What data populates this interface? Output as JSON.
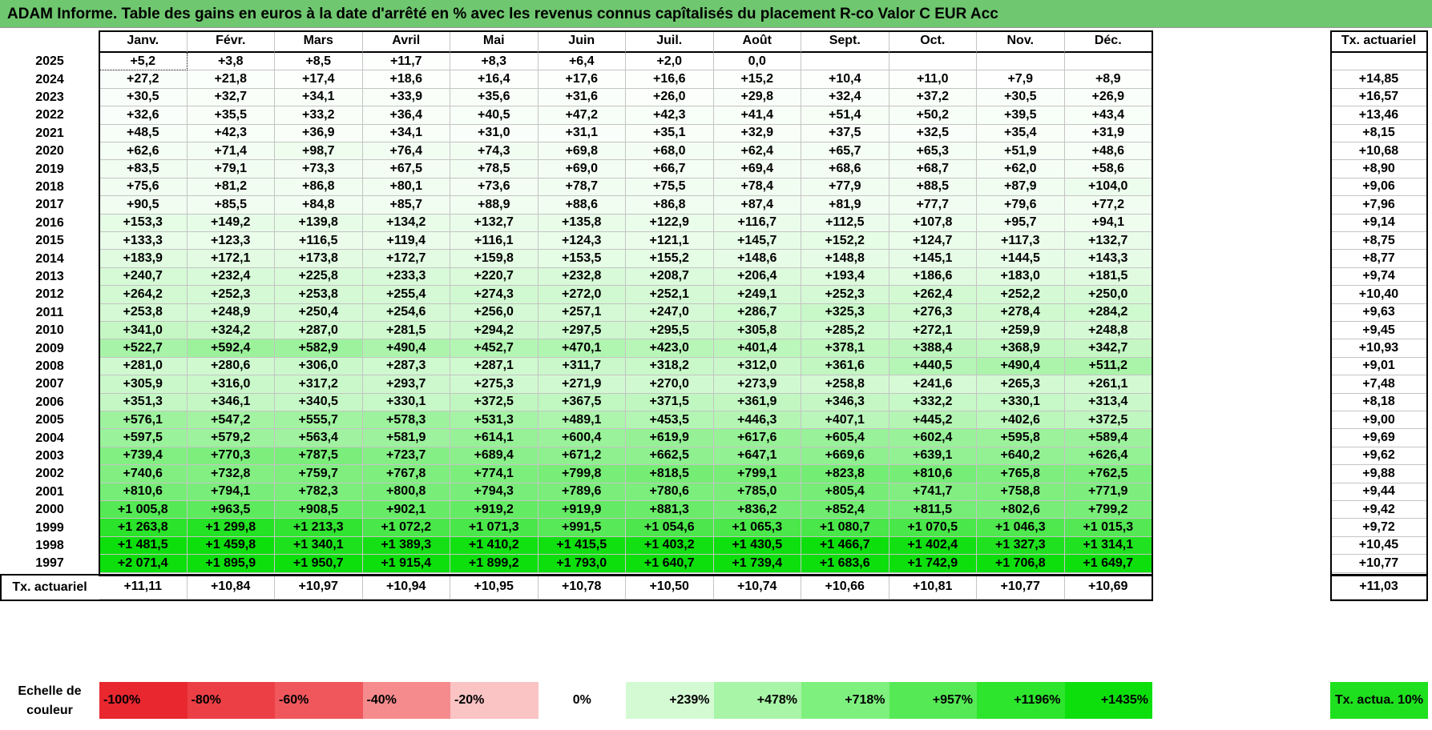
{
  "title": "ADAM Informe. Table des gains en euros à la date d'arrêté en % avec les revenus connus capîtalisés du placement R-co Valor C EUR Acc",
  "months": [
    "Janv.",
    "Févr.",
    "Mars",
    "Avril",
    "Mai",
    "Juin",
    "Juil.",
    "Août",
    "Sept.",
    "Oct.",
    "Nov.",
    "Déc."
  ],
  "rate_header": "Tx. actuariel",
  "rows": [
    {
      "year": "2025",
      "values": [
        "+5,2",
        "+3,8",
        "+8,5",
        "+11,7",
        "+8,3",
        "+6,4",
        "+2,0",
        "0,0",
        "",
        "",
        "",
        ""
      ],
      "rate": ""
    },
    {
      "year": "2024",
      "values": [
        "+27,2",
        "+21,8",
        "+17,4",
        "+18,6",
        "+16,4",
        "+17,6",
        "+16,6",
        "+15,2",
        "+10,4",
        "+11,0",
        "+7,9",
        "+8,9"
      ],
      "rate": "+14,85"
    },
    {
      "year": "2023",
      "values": [
        "+30,5",
        "+32,7",
        "+34,1",
        "+33,9",
        "+35,6",
        "+31,6",
        "+26,0",
        "+29,8",
        "+32,4",
        "+37,2",
        "+30,5",
        "+26,9"
      ],
      "rate": "+16,57"
    },
    {
      "year": "2022",
      "values": [
        "+32,6",
        "+35,5",
        "+33,2",
        "+36,4",
        "+40,5",
        "+47,2",
        "+42,3",
        "+41,4",
        "+51,4",
        "+50,2",
        "+39,5",
        "+43,4"
      ],
      "rate": "+13,46"
    },
    {
      "year": "2021",
      "values": [
        "+48,5",
        "+42,3",
        "+36,9",
        "+34,1",
        "+31,0",
        "+31,1",
        "+35,1",
        "+32,9",
        "+37,5",
        "+32,5",
        "+35,4",
        "+31,9"
      ],
      "rate": "+8,15"
    },
    {
      "year": "2020",
      "values": [
        "+62,6",
        "+71,4",
        "+98,7",
        "+76,4",
        "+74,3",
        "+69,8",
        "+68,0",
        "+62,4",
        "+65,7",
        "+65,3",
        "+51,9",
        "+48,6"
      ],
      "rate": "+10,68"
    },
    {
      "year": "2019",
      "values": [
        "+83,5",
        "+79,1",
        "+73,3",
        "+67,5",
        "+78,5",
        "+69,0",
        "+66,7",
        "+69,4",
        "+68,6",
        "+68,7",
        "+62,0",
        "+58,6"
      ],
      "rate": "+8,90"
    },
    {
      "year": "2018",
      "values": [
        "+75,6",
        "+81,2",
        "+86,8",
        "+80,1",
        "+73,6",
        "+78,7",
        "+75,5",
        "+78,4",
        "+77,9",
        "+88,5",
        "+87,9",
        "+104,0"
      ],
      "rate": "+9,06"
    },
    {
      "year": "2017",
      "values": [
        "+90,5",
        "+85,5",
        "+84,8",
        "+85,7",
        "+88,9",
        "+88,6",
        "+86,8",
        "+87,4",
        "+81,9",
        "+77,7",
        "+79,6",
        "+77,2"
      ],
      "rate": "+7,96"
    },
    {
      "year": "2016",
      "values": [
        "+153,3",
        "+149,2",
        "+139,8",
        "+134,2",
        "+132,7",
        "+135,8",
        "+122,9",
        "+116,7",
        "+112,5",
        "+107,8",
        "+95,7",
        "+94,1"
      ],
      "rate": "+9,14"
    },
    {
      "year": "2015",
      "values": [
        "+133,3",
        "+123,3",
        "+116,5",
        "+119,4",
        "+116,1",
        "+124,3",
        "+121,1",
        "+145,7",
        "+152,2",
        "+124,7",
        "+117,3",
        "+132,7"
      ],
      "rate": "+8,75"
    },
    {
      "year": "2014",
      "values": [
        "+183,9",
        "+172,1",
        "+173,8",
        "+172,7",
        "+159,8",
        "+153,5",
        "+155,2",
        "+148,6",
        "+148,8",
        "+145,1",
        "+144,5",
        "+143,3"
      ],
      "rate": "+8,77"
    },
    {
      "year": "2013",
      "values": [
        "+240,7",
        "+232,4",
        "+225,8",
        "+233,3",
        "+220,7",
        "+232,8",
        "+208,7",
        "+206,4",
        "+193,4",
        "+186,6",
        "+183,0",
        "+181,5"
      ],
      "rate": "+9,74"
    },
    {
      "year": "2012",
      "values": [
        "+264,2",
        "+252,3",
        "+253,8",
        "+255,4",
        "+274,3",
        "+272,0",
        "+252,1",
        "+249,1",
        "+252,3",
        "+262,4",
        "+252,2",
        "+250,0"
      ],
      "rate": "+10,40"
    },
    {
      "year": "2011",
      "values": [
        "+253,8",
        "+248,9",
        "+250,4",
        "+254,6",
        "+256,0",
        "+257,1",
        "+247,0",
        "+286,7",
        "+325,3",
        "+276,3",
        "+278,4",
        "+284,2"
      ],
      "rate": "+9,63"
    },
    {
      "year": "2010",
      "values": [
        "+341,0",
        "+324,2",
        "+287,0",
        "+281,5",
        "+294,2",
        "+297,5",
        "+295,5",
        "+305,8",
        "+285,2",
        "+272,1",
        "+259,9",
        "+248,8"
      ],
      "rate": "+9,45"
    },
    {
      "year": "2009",
      "values": [
        "+522,7",
        "+592,4",
        "+582,9",
        "+490,4",
        "+452,7",
        "+470,1",
        "+423,0",
        "+401,4",
        "+378,1",
        "+388,4",
        "+368,9",
        "+342,7"
      ],
      "rate": "+10,93"
    },
    {
      "year": "2008",
      "values": [
        "+281,0",
        "+280,6",
        "+306,0",
        "+287,3",
        "+287,1",
        "+311,7",
        "+318,2",
        "+312,0",
        "+361,6",
        "+440,5",
        "+490,4",
        "+511,2"
      ],
      "rate": "+9,01"
    },
    {
      "year": "2007",
      "values": [
        "+305,9",
        "+316,0",
        "+317,2",
        "+293,7",
        "+275,3",
        "+271,9",
        "+270,0",
        "+273,9",
        "+258,8",
        "+241,6",
        "+265,3",
        "+261,1"
      ],
      "rate": "+7,48"
    },
    {
      "year": "2006",
      "values": [
        "+351,3",
        "+346,1",
        "+340,5",
        "+330,1",
        "+372,5",
        "+367,5",
        "+371,5",
        "+361,9",
        "+346,3",
        "+332,2",
        "+330,1",
        "+313,4"
      ],
      "rate": "+8,18"
    },
    {
      "year": "2005",
      "values": [
        "+576,1",
        "+547,2",
        "+555,7",
        "+578,3",
        "+531,3",
        "+489,1",
        "+453,5",
        "+446,3",
        "+407,1",
        "+445,2",
        "+402,6",
        "+372,5"
      ],
      "rate": "+9,00"
    },
    {
      "year": "2004",
      "values": [
        "+597,5",
        "+579,2",
        "+563,4",
        "+581,9",
        "+614,1",
        "+600,4",
        "+619,9",
        "+617,6",
        "+605,4",
        "+602,4",
        "+595,8",
        "+589,4"
      ],
      "rate": "+9,69"
    },
    {
      "year": "2003",
      "values": [
        "+739,4",
        "+770,3",
        "+787,5",
        "+723,7",
        "+689,4",
        "+671,2",
        "+662,5",
        "+647,1",
        "+669,6",
        "+639,1",
        "+640,2",
        "+626,4"
      ],
      "rate": "+9,62"
    },
    {
      "year": "2002",
      "values": [
        "+740,6",
        "+732,8",
        "+759,7",
        "+767,8",
        "+774,1",
        "+799,8",
        "+818,5",
        "+799,1",
        "+823,8",
        "+810,6",
        "+765,8",
        "+762,5"
      ],
      "rate": "+9,88"
    },
    {
      "year": "2001",
      "values": [
        "+810,6",
        "+794,1",
        "+782,3",
        "+800,8",
        "+794,3",
        "+789,6",
        "+780,6",
        "+785,0",
        "+805,4",
        "+741,7",
        "+758,8",
        "+771,9"
      ],
      "rate": "+9,44"
    },
    {
      "year": "2000",
      "values": [
        "+1 005,8",
        "+963,5",
        "+908,5",
        "+902,1",
        "+919,2",
        "+919,9",
        "+881,3",
        "+836,2",
        "+852,4",
        "+811,5",
        "+802,6",
        "+799,2"
      ],
      "rate": "+9,42"
    },
    {
      "year": "1999",
      "values": [
        "+1 263,8",
        "+1 299,8",
        "+1 213,3",
        "+1 072,2",
        "+1 071,3",
        "+991,5",
        "+1 054,6",
        "+1 065,3",
        "+1 080,7",
        "+1 070,5",
        "+1 046,3",
        "+1 015,3"
      ],
      "rate": "+9,72"
    },
    {
      "year": "1998",
      "values": [
        "+1 481,5",
        "+1 459,8",
        "+1 340,1",
        "+1 389,3",
        "+1 410,2",
        "+1 415,5",
        "+1 403,2",
        "+1 430,5",
        "+1 466,7",
        "+1 402,4",
        "+1 327,3",
        "+1 314,1"
      ],
      "rate": "+10,45"
    },
    {
      "year": "1997",
      "values": [
        "+2 071,4",
        "+1 895,9",
        "+1 950,7",
        "+1 915,4",
        "+1 899,2",
        "+1 793,0",
        "+1 640,7",
        "+1 739,4",
        "+1 683,6",
        "+1 742,9",
        "+1 706,8",
        "+1 649,7"
      ],
      "rate": "+10,77"
    }
  ],
  "total_row": {
    "label": "Tx. actuariel",
    "values": [
      "+11,11",
      "+10,84",
      "+10,97",
      "+10,94",
      "+10,95",
      "+10,78",
      "+10,50",
      "+10,74",
      "+10,66",
      "+10,81",
      "+10,77",
      "+10,69"
    ],
    "rate": "+11,03"
  },
  "legend": {
    "label": "Echelle de couleur",
    "scale": [
      {
        "text": "-100%",
        "color": "#e8272f"
      },
      {
        "text": "-80%",
        "color": "#ec3f45"
      },
      {
        "text": "-60%",
        "color": "#f0575c"
      },
      {
        "text": "-40%",
        "color": "#f58b8d"
      },
      {
        "text": "-20%",
        "color": "#fac3c4"
      },
      {
        "text": "0%",
        "color": "#ffffff"
      },
      {
        "text": "+239%",
        "color": "#d4fad4"
      },
      {
        "text": "+478%",
        "color": "#a8f5a8"
      },
      {
        "text": "+718%",
        "color": "#7ef07e"
      },
      {
        "text": "+957%",
        "color": "#55ea55"
      },
      {
        "text": "+1196%",
        "color": "#2ce52c"
      },
      {
        "text": "+1435%",
        "color": "#0ddf0d"
      }
    ],
    "rate_box": {
      "text": "Tx. actua. 10%",
      "color": "#1ee01e"
    }
  },
  "colors": {
    "title_bar": "#6fc76f",
    "scale_white": "#ffffff",
    "scale_max": "#0ddf0d",
    "scale_max_value": 1435
  }
}
